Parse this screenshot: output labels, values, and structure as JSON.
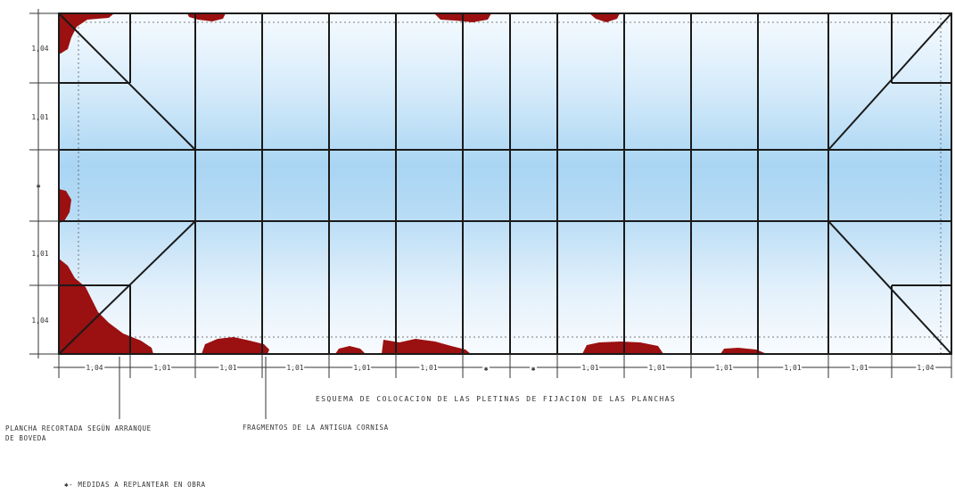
{
  "drawing": {
    "title": "ESQUEMA   DE   COLOCACION DE LAS PLETINAS DE FIJACION DE LAS PLANCHAS",
    "note_plancha_line1": "PLANCHA RECORTADA SEGÚN ARRANQUE",
    "note_plancha_line2": "DE BOVEDA",
    "note_fragmentos": "FRAGMENTOS DE LA ANTIGUA CORNISA",
    "note_medidas": "✱- MEDIDAS A REPLANTEAR EN OBRA",
    "vertical_dims": [
      "1,04",
      "1,01",
      "✱",
      "1,01",
      "1,04"
    ],
    "horizontal_dims": [
      "1,04",
      "1,01",
      "1,01",
      "1,01",
      "1,01",
      "1,01",
      "✱",
      "✱",
      "1,01",
      "1,01",
      "1,01",
      "1,01",
      "1,01",
      "1,04"
    ],
    "colors": {
      "line": "#1a1a1a",
      "damage": "#9b1010",
      "panel_light": "#f6fbff",
      "panel_blue": "#a9d5f3"
    }
  }
}
